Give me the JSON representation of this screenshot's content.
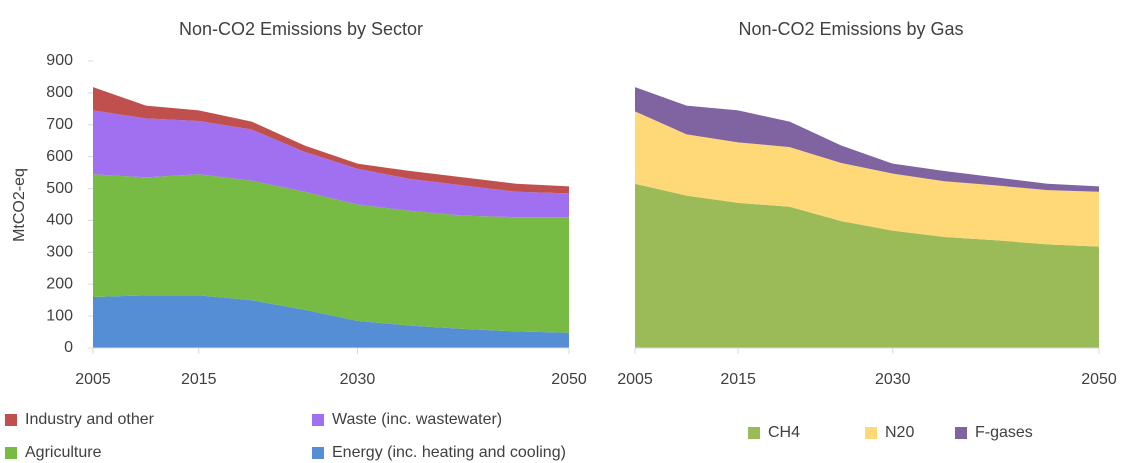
{
  "chart_data": [
    {
      "type": "stacked_area",
      "title": "Non-CO2 Emissions by Sector",
      "y_label": "MtCO2-eq",
      "x": [
        2005,
        2010,
        2015,
        2020,
        2025,
        2030,
        2035,
        2040,
        2045,
        2050
      ],
      "xlim": [
        2005,
        2050
      ],
      "xticks": [
        2005,
        2015,
        2030,
        2050
      ],
      "ylim": [
        0,
        900
      ],
      "yticks": [
        0,
        100,
        200,
        300,
        400,
        500,
        600,
        700,
        800,
        900
      ],
      "series": [
        {
          "name": "Energy (inc. heating and cooling)",
          "color": "#558ed5",
          "values": [
            160,
            165,
            165,
            150,
            120,
            85,
            70,
            60,
            52,
            48
          ]
        },
        {
          "name": "Agriculture",
          "color": "#77bb44",
          "values": [
            385,
            370,
            380,
            375,
            370,
            365,
            360,
            355,
            358,
            362
          ]
        },
        {
          "name": "Waste (inc. wastewater)",
          "color": "#a070f0",
          "values": [
            200,
            185,
            167,
            160,
            125,
            112,
            100,
            95,
            80,
            75
          ]
        },
        {
          "name": "Industry and other",
          "color": "#c0504d",
          "values": [
            73,
            40,
            33,
            25,
            20,
            16,
            25,
            25,
            25,
            22
          ]
        }
      ]
    },
    {
      "type": "stacked_area",
      "title": "Non-CO2 Emissions by Gas",
      "x": [
        2005,
        2010,
        2015,
        2020,
        2025,
        2030,
        2035,
        2040,
        2045,
        2050
      ],
      "xlim": [
        2005,
        2050
      ],
      "xticks": [
        2005,
        2015,
        2030,
        2050
      ],
      "ylim": [
        0,
        900
      ],
      "series": [
        {
          "name": "CH4",
          "color": "#9bbb59",
          "values": [
            515,
            478,
            455,
            443,
            398,
            368,
            348,
            338,
            325,
            318
          ]
        },
        {
          "name": "N20",
          "color": "#ffd878",
          "values": [
            227,
            192,
            190,
            187,
            182,
            179,
            175,
            172,
            170,
            172
          ]
        },
        {
          "name": "F-gases",
          "color": "#8064a2",
          "values": [
            76,
            90,
            100,
            80,
            55,
            31,
            32,
            25,
            20,
            17
          ]
        }
      ]
    }
  ]
}
